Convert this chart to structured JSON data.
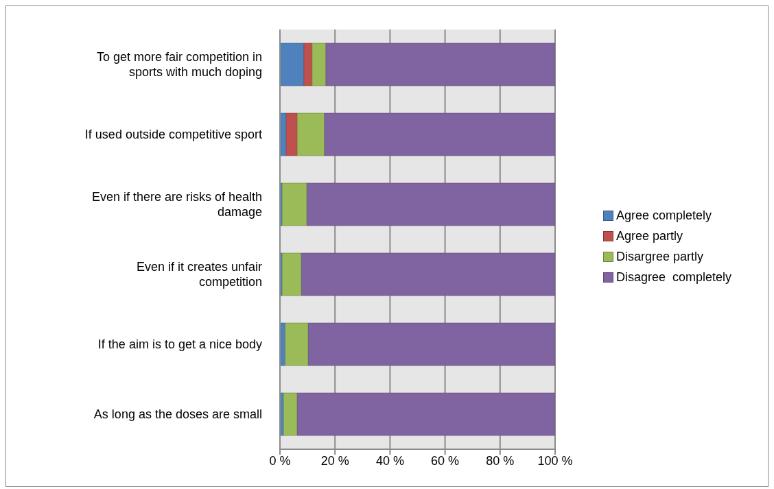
{
  "chart_data": {
    "type": "bar",
    "orientation": "horizontal",
    "stacked": true,
    "categories": [
      "To get more fair competition in sports with much doping",
      "If used outside competitive sport",
      "Even if there are risks of health damage",
      "Even if it creates unfair competition",
      "If the aim is to get a nice body",
      "As long as the doses are small"
    ],
    "series": [
      {
        "name": "Agree completely",
        "color": "#4f81bd",
        "values": [
          8.7,
          2.3,
          0.8,
          0.8,
          1.9,
          1.3
        ]
      },
      {
        "name": "Agree partly",
        "color": "#c0504d",
        "values": [
          3.0,
          4.0,
          0,
          0,
          0,
          0
        ]
      },
      {
        "name": "Disargree partly",
        "color": "#9bbb59",
        "values": [
          5.0,
          9.9,
          9.0,
          7.0,
          8.4,
          5.0
        ]
      },
      {
        "name": "Disagree  completely",
        "color": "#8064a2",
        "values": [
          83.3,
          83.8,
          90.2,
          92.2,
          89.7,
          93.7
        ]
      }
    ],
    "xlim": [
      0,
      100
    ],
    "xticks": [
      {
        "value": 0,
        "label": "0 %"
      },
      {
        "value": 20,
        "label": "20 %"
      },
      {
        "value": 40,
        "label": "40 %"
      },
      {
        "value": 60,
        "label": "60 %"
      },
      {
        "value": 80,
        "label": "80 %"
      },
      {
        "value": 100,
        "label": "100 %"
      }
    ],
    "grid": "x",
    "legend": "right"
  }
}
